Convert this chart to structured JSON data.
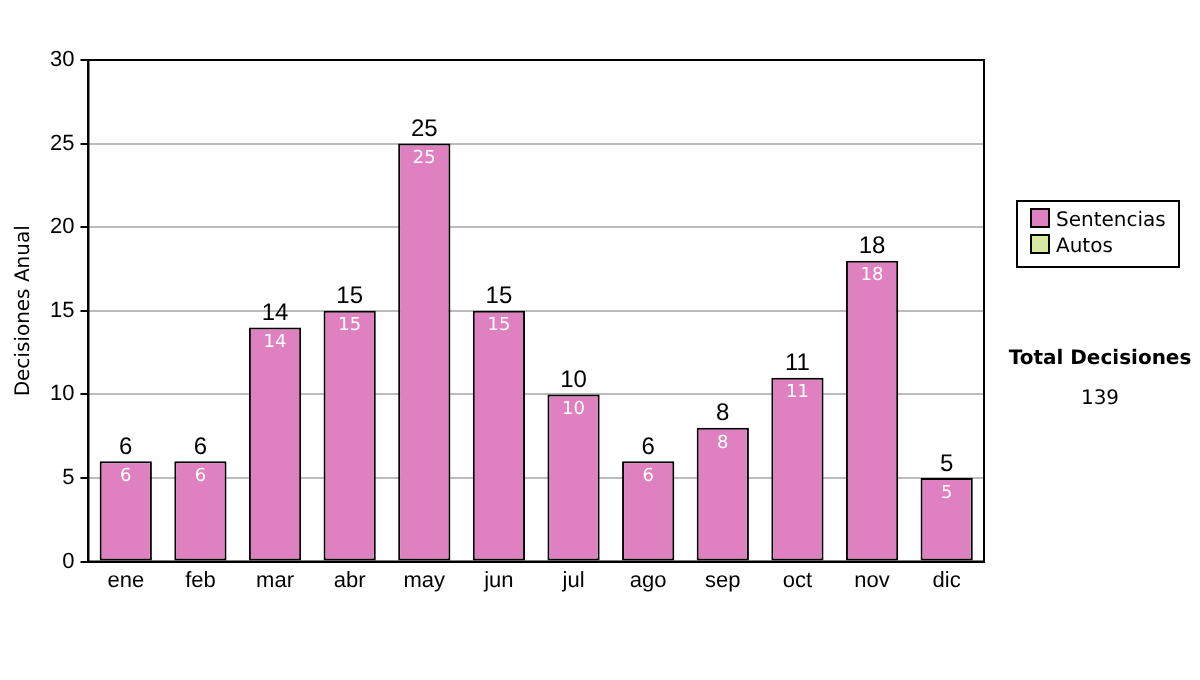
{
  "chart_data": {
    "type": "bar",
    "stacked": true,
    "ylabel": "Decisiones Anual",
    "categories": [
      "ene",
      "feb",
      "mar",
      "abr",
      "may",
      "jun",
      "jul",
      "ago",
      "sep",
      "oct",
      "nov",
      "dic"
    ],
    "series": [
      {
        "name": "Sentencias",
        "color": "#df80c0",
        "values": [
          6,
          6,
          14,
          15,
          25,
          15,
          10,
          6,
          8,
          11,
          18,
          5
        ],
        "value_labels": [
          "6",
          "6",
          "14",
          "15",
          "25",
          "15",
          "10",
          "6",
          "8",
          "11",
          "18",
          "5"
        ]
      },
      {
        "name": "Autos",
        "color": "#d8e8a0",
        "values": [
          0,
          0,
          0,
          0,
          0,
          0,
          0,
          0,
          0,
          0,
          0,
          0
        ]
      }
    ],
    "totals": [
      "6",
      "6",
      "14",
      "15",
      "25",
      "15",
      "10",
      "6",
      "8",
      "11",
      "18",
      "5"
    ],
    "ylim": [
      0,
      30
    ],
    "yticks": [
      0,
      5,
      10,
      15,
      20,
      25,
      30
    ],
    "grid": "y",
    "legend": "right",
    "annotations": [
      "Total Decisiones",
      "139"
    ]
  }
}
